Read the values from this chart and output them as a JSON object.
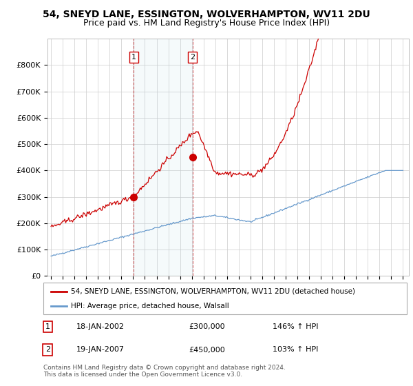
{
  "title": "54, SNEYD LANE, ESSINGTON, WOLVERHAMPTON, WV11 2DU",
  "subtitle": "Price paid vs. HM Land Registry's House Price Index (HPI)",
  "ylim": [
    0,
    900000
  ],
  "yticks": [
    0,
    100000,
    200000,
    300000,
    400000,
    500000,
    600000,
    700000,
    800000
  ],
  "ytick_labels": [
    "£0",
    "£100K",
    "£200K",
    "£300K",
    "£400K",
    "£500K",
    "£600K",
    "£700K",
    "£800K"
  ],
  "background_color": "#ffffff",
  "plot_bg_color": "#ffffff",
  "grid_color": "#cccccc",
  "red_line_color": "#cc0000",
  "blue_line_color": "#6699cc",
  "sale1_price": 300000,
  "sale2_price": 450000,
  "legend_entries": [
    "54, SNEYD LANE, ESSINGTON, WOLVERHAMPTON, WV11 2DU (detached house)",
    "HPI: Average price, detached house, Walsall"
  ],
  "annotation1": [
    "1",
    "18-JAN-2002",
    "£300,000",
    "146% ↑ HPI"
  ],
  "annotation2": [
    "2",
    "19-JAN-2007",
    "£450,000",
    "103% ↑ HPI"
  ],
  "footer": "Contains HM Land Registry data © Crown copyright and database right 2024.\nThis data is licensed under the Open Government Licence v3.0.",
  "title_fontsize": 10,
  "subtitle_fontsize": 9
}
